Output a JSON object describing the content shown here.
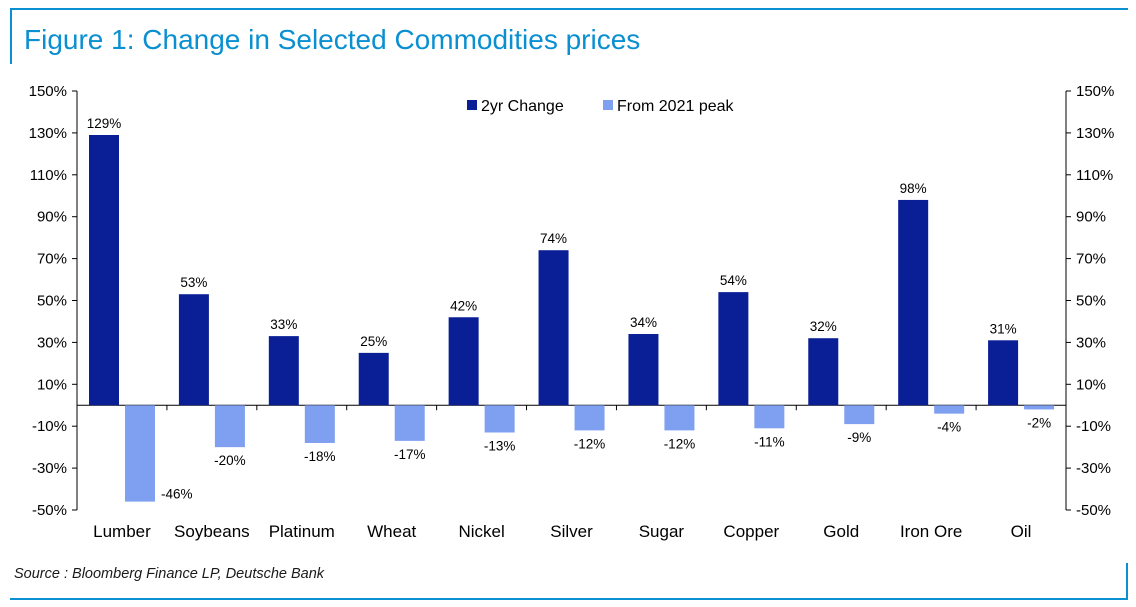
{
  "header": {
    "title": "Figure 1: Change in Selected Commodities prices"
  },
  "footer": {
    "source": "Source : Bloomberg Finance LP, Deutsche Bank"
  },
  "colors": {
    "frame": "#0a8fd1",
    "series_2yr": "#0a1e96",
    "series_peak": "#7f9ff0"
  },
  "chart_data": {
    "type": "bar",
    "title": "Figure 1: Change in Selected Commodities prices",
    "categories": [
      "Lumber",
      "Soybeans",
      "Platinum",
      "Wheat",
      "Nickel",
      "Silver",
      "Sugar",
      "Copper",
      "Gold",
      "Iron Ore",
      "Oil"
    ],
    "series": [
      {
        "name": "2yr Change",
        "values": [
          129,
          53,
          33,
          25,
          42,
          74,
          34,
          54,
          32,
          98,
          31
        ],
        "labels": [
          "129%",
          "53%",
          "33%",
          "25%",
          "42%",
          "74%",
          "34%",
          "54%",
          "32%",
          "98%",
          "31%"
        ]
      },
      {
        "name": "From 2021 peak",
        "values": [
          -46,
          -20,
          -18,
          -17,
          -13,
          -12,
          -12,
          -11,
          -9,
          -4,
          -2
        ],
        "labels": [
          "-46%",
          "-20%",
          "-18%",
          "-17%",
          "-13%",
          "-12%",
          "-12%",
          "-11%",
          "-9%",
          "-4%",
          "-2%"
        ]
      }
    ],
    "y_ticks": [
      150,
      130,
      110,
      90,
      70,
      50,
      30,
      10,
      -10,
      -30,
      -50
    ],
    "y_tick_labels": [
      "150%",
      "130%",
      "110%",
      "90%",
      "70%",
      "50%",
      "30%",
      "10%",
      "-10%",
      "-30%",
      "-50%"
    ],
    "ylim": [
      -50,
      150
    ],
    "y_axis_left": true,
    "y_axis_right": true,
    "grid": false,
    "legend_position": "top-center"
  }
}
